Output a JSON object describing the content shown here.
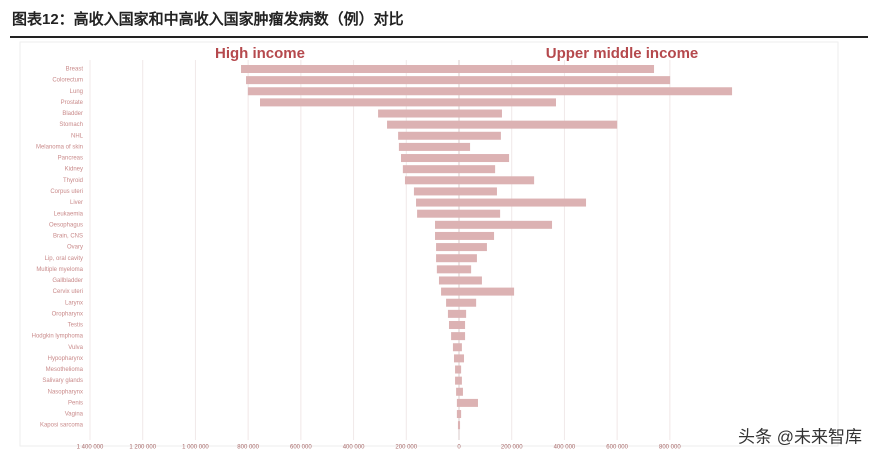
{
  "chart_data": {
    "type": "diverging-bar",
    "title": "图表12：高收入国家和中高收入国家肿瘤发病数（例）对比",
    "categories": [
      "Breast",
      "Colorectum",
      "Lung",
      "Prostate",
      "Bladder",
      "Stomach",
      "NHL",
      "Melanoma of skin",
      "Pancreas",
      "Kidney",
      "Thyroid",
      "Corpus uteri",
      "Liver",
      "Leukaemia",
      "Oesophagus",
      "Brain, CNS",
      "Ovary",
      "Lip, oral cavity",
      "Multiple myeloma",
      "Gallbladder",
      "Cervix uteri",
      "Larynx",
      "Oropharynx",
      "Testis",
      "Hodgkin lymphoma",
      "Vulva",
      "Hypopharynx",
      "Mesothelioma",
      "Salivary glands",
      "Nasopharynx",
      "Penis",
      "Vagina",
      "Kaposi sarcoma"
    ],
    "series": [
      {
        "name": "High income",
        "color": "#dcb2b3",
        "values": [
          -827000,
          -808000,
          -801000,
          -755000,
          -307000,
          -273000,
          -231000,
          -228000,
          -220000,
          -213000,
          -205000,
          -171000,
          -163000,
          -159000,
          -91000,
          -91000,
          -87000,
          -87000,
          -84000,
          -76000,
          -68000,
          -49000,
          -42000,
          -38000,
          -30000,
          -23000,
          -19000,
          -15000,
          -15000,
          -11000,
          -8000,
          -8000,
          -4000
        ]
      },
      {
        "name": "Upper middle income",
        "color": "#dcb2b3",
        "values": [
          740000,
          801000,
          1036000,
          368000,
          163000,
          600000,
          159000,
          42000,
          190000,
          137000,
          285000,
          144000,
          482000,
          156000,
          353000,
          133000,
          106000,
          68000,
          46000,
          87000,
          209000,
          65000,
          27000,
          23000,
          23000,
          11000,
          19000,
          8000,
          11000,
          15000,
          72000,
          8000,
          4000
        ]
      }
    ],
    "xlim": [
      -1400000,
      1400000
    ],
    "xticks": [
      {
        "value": -1400000,
        "label": "1 400 000"
      },
      {
        "value": -1200000,
        "label": "1 200 000"
      },
      {
        "value": -1000000,
        "label": "1 000 000"
      },
      {
        "value": -800000,
        "label": "800 000"
      },
      {
        "value": -600000,
        "label": "600 000"
      },
      {
        "value": -400000,
        "label": "400 000"
      },
      {
        "value": -200000,
        "label": "200 000"
      },
      0,
      {
        "value": 200000,
        "label": "200 000"
      },
      {
        "value": 400000,
        "label": "400 000"
      },
      {
        "value": 600000,
        "label": "600 000"
      },
      {
        "value": 800000,
        "label": "800 000"
      }
    ],
    "grid": true
  },
  "watermark": "头条 @未来智库"
}
